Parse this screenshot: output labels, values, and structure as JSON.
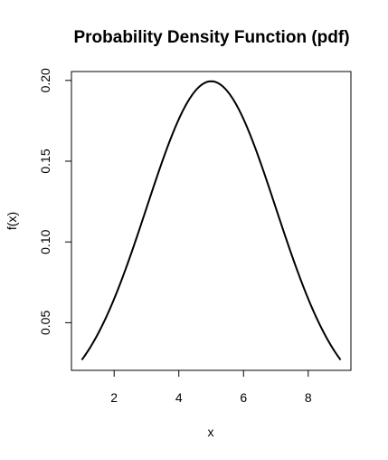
{
  "chart_data": {
    "type": "line",
    "title": "Probability Density Function (pdf)",
    "xlabel": "x",
    "ylabel": "f(x)",
    "xlim": [
      0.68,
      9.32
    ],
    "ylim": [
      0.0205,
      0.2055
    ],
    "x_ticks": [
      2,
      4,
      6,
      8
    ],
    "y_ticks": [
      0.05,
      0.1,
      0.15,
      0.2
    ],
    "x_tick_labels": [
      "2",
      "4",
      "6",
      "8"
    ],
    "y_tick_labels": [
      "0.05",
      "0.10",
      "0.15",
      "0.20"
    ],
    "grid": false,
    "series": [
      {
        "distribution": "normal",
        "mean": 5,
        "sd": 2,
        "x_range": [
          1,
          9
        ],
        "x": [
          1.0,
          1.5,
          2.0,
          2.5,
          3.0,
          3.5,
          4.0,
          4.5,
          5.0,
          5.5,
          6.0,
          6.5,
          7.0,
          7.5,
          8.0,
          8.5,
          9.0
        ],
        "values": [
          0.027,
          0.0431,
          0.0648,
          0.0913,
          0.121,
          0.1506,
          0.176,
          0.1933,
          0.1995,
          0.1933,
          0.176,
          0.1506,
          0.121,
          0.0913,
          0.0648,
          0.0431,
          0.027
        ]
      }
    ]
  }
}
